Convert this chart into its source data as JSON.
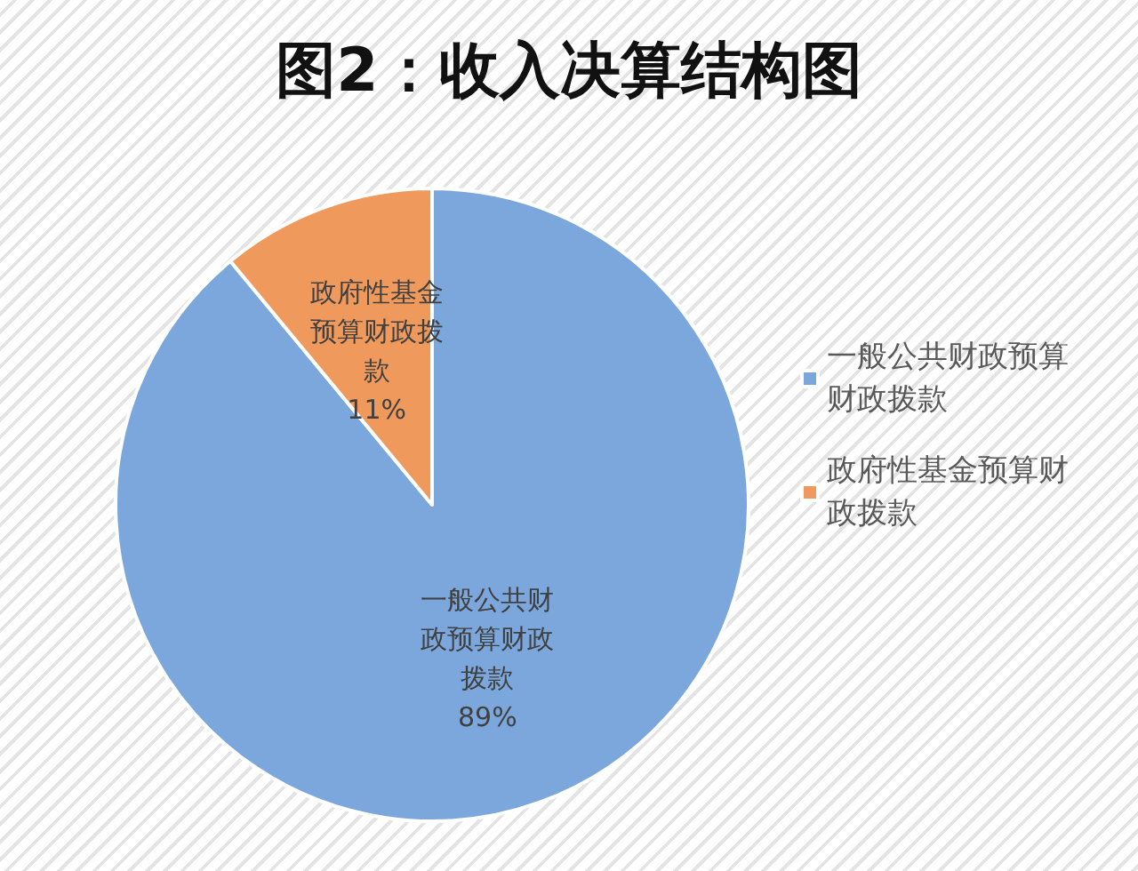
{
  "chart_data": {
    "type": "pie",
    "title": "图2：收入决算结构图",
    "categories": [
      "一般公共财政预算财政拨款",
      "政府性基金预算财政拨款"
    ],
    "values": [
      89,
      11
    ],
    "colors": [
      "#7ba7dc",
      "#ef9a5c"
    ],
    "value_labels": [
      "89%",
      "11%"
    ],
    "legend": "right"
  }
}
